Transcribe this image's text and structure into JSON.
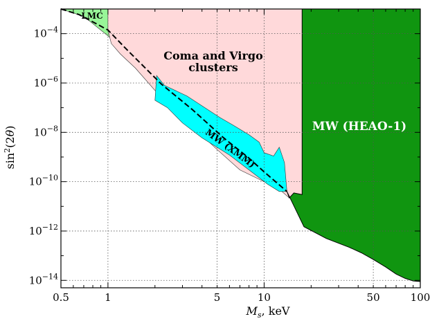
{
  "chart_data": {
    "type": "area",
    "xlabel": "M_s, keV",
    "ylabel": "sin²(2θ)",
    "x_scale": "log",
    "y_scale": "log",
    "xlim": [
      0.5,
      100
    ],
    "ylim": [
      5e-15,
      0.001
    ],
    "grid": true,
    "x_ticks": [
      {
        "value": 0.5,
        "label": "0.5"
      },
      {
        "value": 1,
        "label": "1"
      },
      {
        "value": 5,
        "label": "5"
      },
      {
        "value": 10,
        "label": "10"
      },
      {
        "value": 50,
        "label": "50"
      },
      {
        "value": 100,
        "label": "100"
      }
    ],
    "y_ticks": [
      {
        "value": 0.0001,
        "base": "10",
        "exp": "−4"
      },
      {
        "value": 1e-06,
        "base": "10",
        "exp": "−6"
      },
      {
        "value": 1e-08,
        "base": "10",
        "exp": "−8"
      },
      {
        "value": 1e-10,
        "base": "10",
        "exp": "−10"
      },
      {
        "value": 1e-12,
        "base": "10",
        "exp": "−12"
      },
      {
        "value": 1e-14,
        "base": "10",
        "exp": "−14"
      }
    ],
    "regions": [
      {
        "label": "LMC",
        "color": "#98f598",
        "points": [
          [
            0.5,
            0.001
          ],
          [
            1.0,
            0.001
          ],
          [
            1.0,
            0.00014
          ],
          [
            1.2,
            5e-05
          ],
          [
            1.6,
            6e-06
          ],
          [
            2.2,
            9e-07
          ],
          [
            3.5,
            8e-08
          ],
          [
            5.5,
            6e-09
          ],
          [
            8,
            9e-10
          ],
          [
            10,
            2.5e-10
          ],
          [
            14,
            4e-11
          ],
          [
            1.8,
            3e-06
          ],
          [
            1.1,
            5e-05
          ],
          [
            0.7,
            0.0005
          ]
        ]
      },
      {
        "label": "Coma and Virgo clusters",
        "color": "#ffd9da",
        "points": [
          [
            1.0,
            0.001
          ],
          [
            17.5,
            0.001
          ],
          [
            17.5,
            3e-11
          ],
          [
            15.5,
            3.5e-11
          ],
          [
            14.5,
            2.2e-11
          ],
          [
            13,
            4e-11
          ],
          [
            10,
            1e-10
          ],
          [
            7,
            3e-10
          ],
          [
            5,
            2e-09
          ],
          [
            3,
            4e-08
          ],
          [
            2,
            5e-07
          ],
          [
            1.5,
            4e-06
          ],
          [
            1.2,
            1.5e-05
          ],
          [
            1.05,
            4e-05
          ],
          [
            1.0,
            0.00014
          ]
        ]
      },
      {
        "label": "MW (XMM)",
        "color": "#00ffff",
        "points": [
          [
            2.05,
            2e-06
          ],
          [
            2.3,
            8e-07
          ],
          [
            3.2,
            3e-07
          ],
          [
            5.2,
            4e-08
          ],
          [
            6.3,
            2e-08
          ],
          [
            8,
            8e-09
          ],
          [
            9.3,
            4e-09
          ],
          [
            10,
            1.5e-09
          ],
          [
            11.5,
            1.1e-09
          ],
          [
            12.5,
            2.5e-09
          ],
          [
            13.5,
            6e-10
          ],
          [
            14,
            4e-11
          ],
          [
            12.5,
            4e-11
          ],
          [
            10.5,
            8e-11
          ],
          [
            8,
            3e-10
          ],
          [
            6,
            1.2e-09
          ],
          [
            4,
            6e-09
          ],
          [
            3,
            2.4e-08
          ],
          [
            2.4,
            1e-07
          ],
          [
            2,
            2e-07
          ]
        ]
      },
      {
        "label": "MW (HEAO-1)",
        "color": "#109510",
        "points": [
          [
            17.5,
            0.001
          ],
          [
            100,
            0.001
          ],
          [
            100,
            9e-15
          ],
          [
            90,
            9.5e-15
          ],
          [
            80,
            1.2e-14
          ],
          [
            70,
            1.8e-14
          ],
          [
            60,
            3.5e-14
          ],
          [
            50,
            7e-14
          ],
          [
            42,
            1.3e-13
          ],
          [
            35,
            2.2e-13
          ],
          [
            25,
            5e-13
          ],
          [
            18,
            1.5e-12
          ],
          [
            14,
            4e-11
          ],
          [
            14.5,
            2.2e-11
          ],
          [
            15.5,
            3.5e-11
          ],
          [
            17.5,
            3e-11
          ]
        ]
      }
    ],
    "dashed_line": {
      "points": [
        [
          0.5,
          0.001
        ],
        [
          0.65,
          0.0006
        ],
        [
          0.8,
          0.0003
        ],
        [
          1.0,
          0.00014
        ],
        [
          1.3,
          2.5e-05
        ],
        [
          2.2,
          9e-07
        ],
        [
          3.5,
          8e-08
        ],
        [
          5.5,
          6e-09
        ],
        [
          8,
          9e-10
        ],
        [
          10,
          2.5e-10
        ],
        [
          14,
          4e-11
        ]
      ]
    }
  }
}
